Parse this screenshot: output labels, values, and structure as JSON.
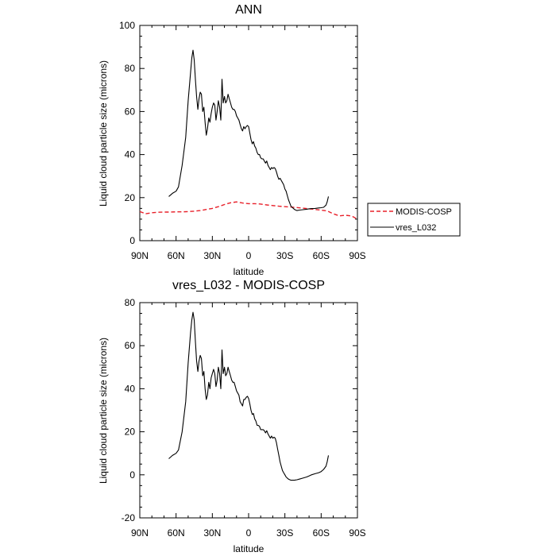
{
  "chart_data": [
    {
      "type": "line",
      "title": "ANN",
      "xlabel": "latitude",
      "ylabel": "Liquid cloud particle size (microns)",
      "xlim": [
        90,
        -90
      ],
      "ylim": [
        0,
        100
      ],
      "x_ticks": [
        {
          "value": 90,
          "label": "90N"
        },
        {
          "value": 60,
          "label": "60N"
        },
        {
          "value": 30,
          "label": "30N"
        },
        {
          "value": 0,
          "label": "0"
        },
        {
          "value": -30,
          "label": "30S"
        },
        {
          "value": -60,
          "label": "60S"
        },
        {
          "value": -90,
          "label": "90S"
        }
      ],
      "y_ticks": [
        0,
        20,
        40,
        60,
        80,
        100
      ],
      "legend_position": "right-bottom, outside plot",
      "series": [
        {
          "name": "MODIS-COSP",
          "color": "#e8202a",
          "dash": "dashed",
          "x": [
            90,
            85,
            80,
            75,
            70,
            65,
            60,
            55,
            50,
            45,
            40,
            35,
            30,
            25,
            20,
            15,
            10,
            5,
            0,
            -5,
            -10,
            -15,
            -20,
            -25,
            -30,
            -35,
            -40,
            -45,
            -50,
            -55,
            -60,
            -65,
            -70,
            -75,
            -80,
            -85,
            -90
          ],
          "y": [
            13.5,
            12.5,
            13,
            13.2,
            13.3,
            13.3,
            13.4,
            13.4,
            13.5,
            13.7,
            14,
            14.5,
            15,
            15.8,
            16.8,
            17.6,
            18,
            17.5,
            17.2,
            17.2,
            17,
            16.6,
            16.3,
            16,
            15.8,
            15.6,
            15.4,
            15.1,
            14.8,
            14.5,
            14.2,
            13.8,
            12.5,
            11.5,
            11.8,
            11.5,
            10
          ]
        },
        {
          "name": "vres_L032",
          "color": "#000000",
          "dash": "solid",
          "x": [
            66,
            63,
            60,
            58,
            55,
            52,
            50,
            48,
            47,
            46,
            45,
            44,
            43,
            42,
            41,
            40,
            39,
            38,
            37,
            36,
            35,
            34,
            33,
            32,
            31,
            30,
            29,
            28,
            27,
            26,
            25,
            24,
            23,
            22,
            21,
            20,
            19,
            18,
            17,
            16,
            15,
            14,
            13,
            12,
            11,
            10,
            9,
            8,
            7,
            6,
            5,
            4,
            3,
            2,
            1,
            0,
            -1,
            -2,
            -3,
            -4,
            -5,
            -6,
            -7,
            -8,
            -9,
            -10,
            -11,
            -12,
            -13,
            -14,
            -15,
            -16,
            -17,
            -18,
            -19,
            -20,
            -21,
            -22,
            -23,
            -24,
            -25,
            -26,
            -27,
            -28,
            -29,
            -30,
            -31,
            -32,
            -33,
            -35,
            -38,
            -40,
            -42,
            -45,
            -48,
            -50,
            -52,
            -55,
            -58,
            -60,
            -62,
            -64,
            -65,
            -66
          ],
          "y": [
            20.5,
            22,
            23,
            25,
            35,
            48,
            65,
            78,
            85,
            88.5,
            84,
            75,
            67,
            61,
            66,
            69,
            68,
            60,
            62,
            55,
            49,
            52,
            57,
            55,
            59,
            62,
            64,
            63,
            56,
            60,
            65,
            62,
            56,
            75,
            64,
            67,
            64,
            65,
            68,
            66,
            64,
            62,
            61,
            61,
            60,
            58,
            57,
            56,
            54,
            52,
            51,
            53,
            52,
            53,
            53.5,
            53,
            50,
            47,
            45,
            46,
            44,
            43,
            41,
            40,
            40,
            38.5,
            38,
            38,
            37,
            36,
            37,
            35,
            34,
            33,
            34,
            33.5,
            34,
            33.5,
            32,
            30,
            28.5,
            29,
            28,
            27,
            26,
            24,
            23,
            21,
            19,
            16,
            14.5,
            14,
            14.2,
            14.4,
            14.6,
            14.8,
            14.9,
            15,
            15.2,
            15.3,
            15.5,
            16.5,
            18,
            20.5
          ]
        }
      ]
    },
    {
      "type": "line",
      "title": "vres_L032 - MODIS-COSP",
      "xlabel": "latitude",
      "ylabel": "Liquid cloud particle size (microns)",
      "xlim": [
        90,
        -90
      ],
      "ylim": [
        -20,
        80
      ],
      "x_ticks": [
        {
          "value": 90,
          "label": "90N"
        },
        {
          "value": 60,
          "label": "60N"
        },
        {
          "value": 30,
          "label": "30N"
        },
        {
          "value": 0,
          "label": "0"
        },
        {
          "value": -30,
          "label": "30S"
        },
        {
          "value": -60,
          "label": "60S"
        },
        {
          "value": -90,
          "label": "90S"
        }
      ],
      "y_ticks": [
        -20,
        0,
        20,
        40,
        60,
        80
      ],
      "series": [
        {
          "color": "#000000",
          "dash": "solid",
          "x": [
            66,
            63,
            60,
            58,
            55,
            52,
            50,
            48,
            47,
            46,
            45,
            44,
            43,
            42,
            41,
            40,
            39,
            38,
            37,
            36,
            35,
            34,
            33,
            32,
            31,
            30,
            29,
            28,
            27,
            26,
            25,
            24,
            23,
            22,
            21,
            20,
            19,
            18,
            17,
            16,
            15,
            14,
            13,
            12,
            11,
            10,
            9,
            8,
            7,
            6,
            5,
            4,
            3,
            2,
            1,
            0,
            -1,
            -2,
            -3,
            -4,
            -5,
            -6,
            -7,
            -8,
            -9,
            -10,
            -11,
            -12,
            -13,
            -14,
            -15,
            -16,
            -17,
            -18,
            -19,
            -20,
            -21,
            -22,
            -23,
            -24,
            -25,
            -26,
            -27,
            -28,
            -29,
            -30,
            -31,
            -32,
            -33,
            -35,
            -38,
            -40,
            -42,
            -45,
            -48,
            -50,
            -52,
            -55,
            -58,
            -60,
            -62,
            -64,
            -65,
            -66
          ],
          "y": [
            7.5,
            9,
            10,
            11.5,
            20,
            34,
            52,
            66,
            72,
            75.5,
            72,
            62,
            53,
            48,
            53,
            55.5,
            54,
            46,
            48,
            40,
            35,
            37,
            43,
            40,
            45,
            47,
            49,
            47,
            41,
            44,
            50,
            47,
            40,
            58,
            47,
            50,
            46,
            47,
            50,
            48,
            46,
            44,
            43,
            43,
            41,
            39,
            38,
            37,
            34,
            33,
            32,
            35,
            35,
            36,
            36.5,
            35.5,
            33,
            30,
            28,
            28.5,
            26,
            25,
            23,
            23,
            22.5,
            21,
            21,
            21,
            20.5,
            19.5,
            20.5,
            19,
            18,
            17,
            18,
            17,
            17.5,
            17,
            15,
            12,
            9,
            6,
            4,
            2,
            1,
            0,
            -1,
            -1.5,
            -2,
            -2.5,
            -2.5,
            -2.3,
            -2,
            -1.5,
            -1,
            -0.5,
            0,
            0.5,
            1,
            1.5,
            2.5,
            4,
            6,
            9
          ]
        }
      ]
    }
  ]
}
